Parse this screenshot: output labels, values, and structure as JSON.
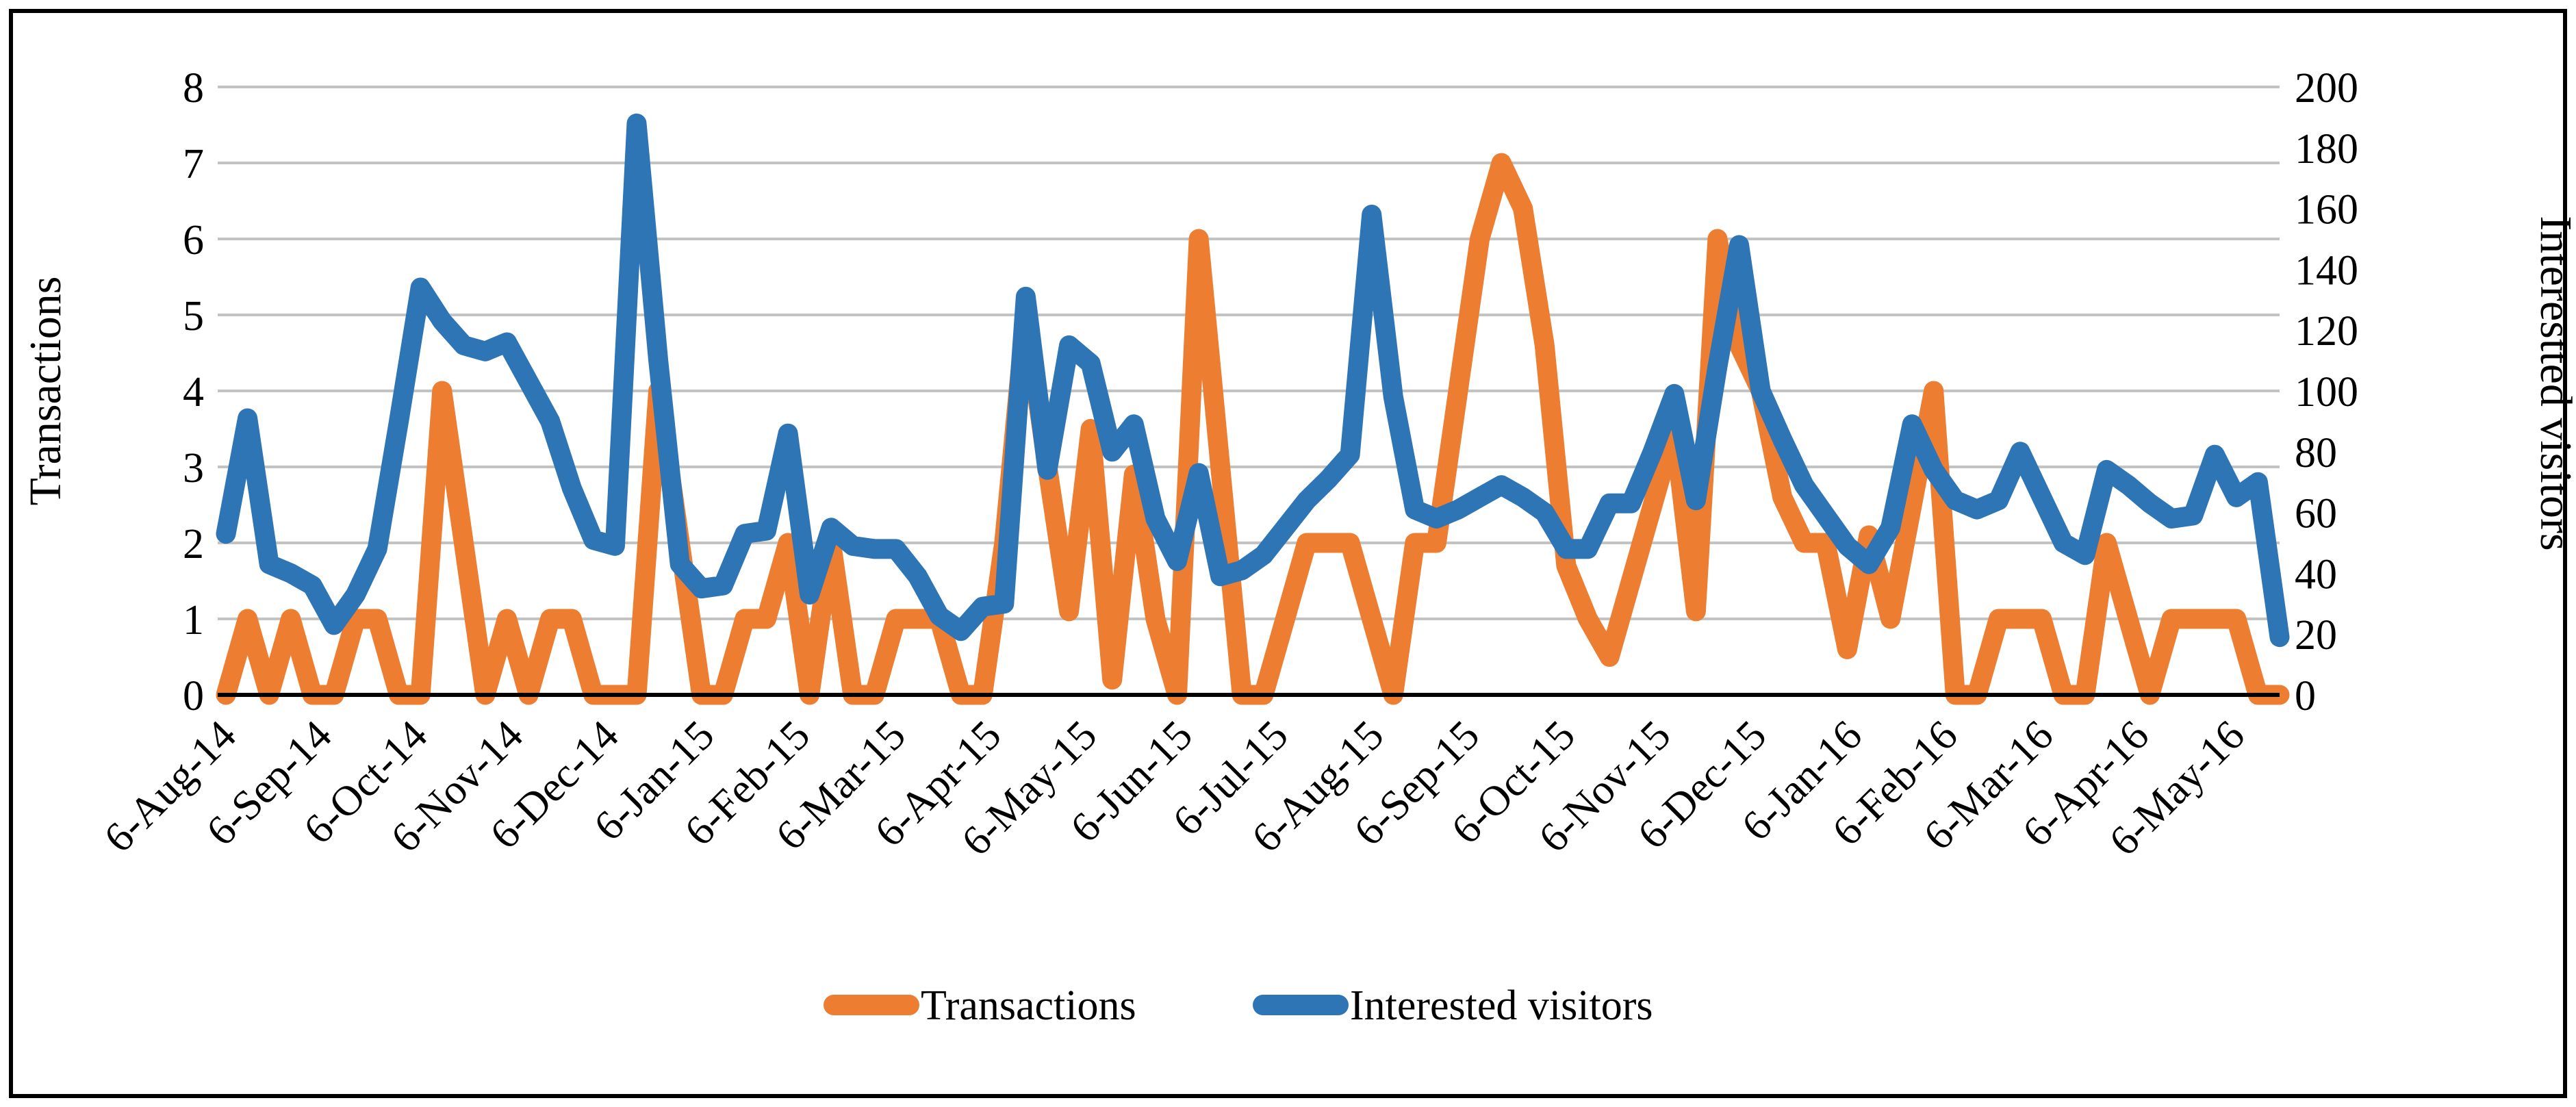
{
  "page": {
    "background": "#FFFFFF",
    "border_color": "#000000"
  },
  "chart_data": {
    "type": "line",
    "title": "",
    "grid": "horizontal-on",
    "legend_position": "bottom",
    "x_axis": {
      "tick_labels": [
        "6-Aug-14",
        "6-Sep-14",
        "6-Oct-14",
        "6-Nov-14",
        "6-Dec-14",
        "6-Jan-15",
        "6-Feb-15",
        "6-Mar-15",
        "6-Apr-15",
        "6-May-15",
        "6-Jun-15",
        "6-Jul-15",
        "6-Aug-15",
        "6-Sep-15",
        "6-Oct-15",
        "6-Nov-15",
        "6-Dec-15",
        "6-Jan-16",
        "6-Feb-16",
        "6-Mar-16",
        "6-Apr-16",
        "6-May-16"
      ]
    },
    "y_axis_left": {
      "label": "Transactions",
      "min": 0,
      "max": 8,
      "step": 1,
      "tick_labels": [
        "0",
        "1",
        "2",
        "3",
        "4",
        "5",
        "6",
        "7",
        "8"
      ]
    },
    "y_axis_right": {
      "label": "Interestted visitors",
      "min": 0,
      "max": 200,
      "step": 20,
      "tick_labels": [
        "0",
        "20",
        "40",
        "60",
        "80",
        "100",
        "120",
        "140",
        "160",
        "180",
        "200"
      ]
    },
    "series": [
      {
        "name": "Transactions",
        "axis": "left",
        "color": "#ED7D31",
        "values": [
          0,
          1,
          0,
          1,
          0,
          0,
          1,
          1,
          0,
          0,
          4,
          2,
          0,
          1,
          0,
          1,
          1,
          0,
          0,
          0,
          4,
          2,
          0,
          0,
          1,
          1,
          2,
          0,
          2,
          0,
          0,
          1,
          1,
          1,
          0,
          0,
          2,
          5,
          3,
          1.1,
          3.5,
          0.2,
          2.9,
          1,
          0,
          6,
          3,
          0,
          0,
          1,
          2,
          2,
          2,
          1,
          0,
          2,
          2,
          4,
          6,
          7,
          6.4,
          4.6,
          1.7,
          1,
          0.5,
          1.5,
          2.5,
          3.5,
          1.1,
          6,
          4.6,
          4,
          2.6,
          2,
          2,
          0.6,
          2.1,
          1,
          2.5,
          4,
          0,
          0,
          1,
          1,
          1,
          0,
          0,
          2,
          1,
          0,
          1,
          1,
          1,
          1,
          0,
          0
        ]
      },
      {
        "name": "Interested visitors",
        "axis": "right",
        "color": "#2E75B6",
        "values": [
          53,
          91,
          43,
          40,
          36,
          23,
          33,
          48,
          90,
          134,
          123,
          115,
          113,
          116,
          103,
          90,
          68,
          51,
          49,
          188,
          110,
          43,
          35,
          36,
          53,
          54,
          86,
          33,
          55,
          49,
          48,
          48,
          39,
          26,
          21,
          29,
          30,
          131,
          74,
          115,
          109,
          80,
          89,
          58,
          44,
          73,
          39,
          41,
          46,
          55,
          64,
          71,
          79,
          158,
          98,
          61,
          58,
          61,
          65,
          69,
          65,
          60,
          48,
          48,
          63,
          63,
          80,
          99,
          64,
          108,
          148,
          100,
          84,
          69,
          59,
          49,
          43,
          55,
          89,
          74,
          64,
          61,
          64,
          80,
          65,
          50,
          46,
          74,
          69,
          63,
          58,
          59,
          79,
          65,
          70,
          19
        ]
      }
    ],
    "legend": {
      "items": [
        "Transactions",
        "Interested visitors"
      ]
    },
    "style": {
      "gridline_color": "#C3C3C3",
      "axis_line_color": "#000000",
      "line_width": 29
    }
  }
}
